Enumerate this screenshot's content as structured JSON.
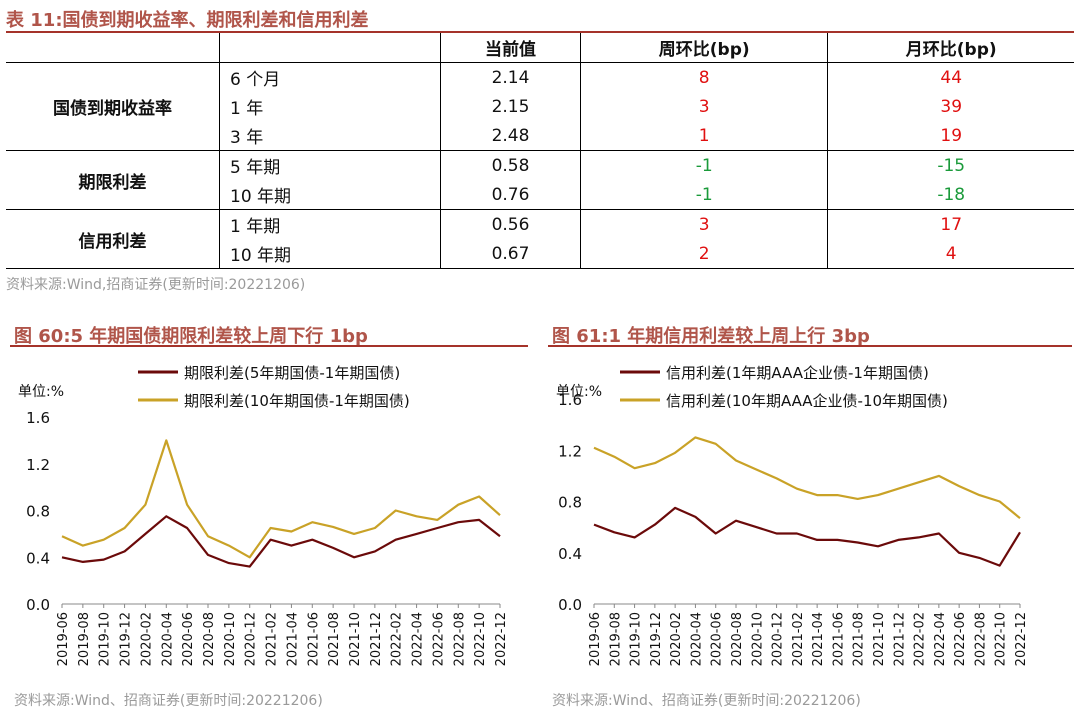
{
  "table": {
    "caption": "表 11:国债到期收益率、期限利差和信用利差",
    "headers": [
      "当前值",
      "周环比(bp)",
      "月环比(bp)"
    ],
    "groups": [
      {
        "name": "国债到期收益率",
        "rows": [
          {
            "label": "6 个月",
            "value": "2.14",
            "wow": "8",
            "mom": "44"
          },
          {
            "label": "1 年",
            "value": "2.15",
            "wow": "3",
            "mom": "39"
          },
          {
            "label": "3 年",
            "value": "2.48",
            "wow": "1",
            "mom": "19"
          }
        ]
      },
      {
        "name": "期限利差",
        "rows": [
          {
            "label": "5 年期",
            "value": "0.58",
            "wow": "-1",
            "mom": "-15"
          },
          {
            "label": "10 年期",
            "value": "0.76",
            "wow": "-1",
            "mom": "-18"
          }
        ]
      },
      {
        "name": "信用利差",
        "rows": [
          {
            "label": "1 年期",
            "value": "0.56",
            "wow": "3",
            "mom": "17"
          },
          {
            "label": "10 年期",
            "value": "0.67",
            "wow": "2",
            "mom": "4"
          }
        ]
      }
    ],
    "source": "资料来源:Wind,招商证券(更新时间:20221206)"
  },
  "colors": {
    "up": "#e01010",
    "down": "#1a9a3a",
    "series_dark": "#6b0a0a",
    "series_gold": "#c9a227",
    "caption": "#b0554a"
  },
  "chart_data": [
    {
      "type": "line",
      "caption": "图 60:5 年期国债期限利差较上周下行 1bp",
      "unit_label": "单位:%",
      "ylim": [
        0,
        1.6
      ],
      "yticks": [
        "1.6",
        "1.2",
        "0.8",
        "0.4",
        "0.0"
      ],
      "x": [
        "2019-06",
        "2019-08",
        "2019-10",
        "2019-12",
        "2020-02",
        "2020-04",
        "2020-06",
        "2020-08",
        "2020-10",
        "2020-12",
        "2021-02",
        "2021-04",
        "2021-06",
        "2021-08",
        "2021-10",
        "2021-12",
        "2022-02",
        "2022-04",
        "2022-06",
        "2022-08",
        "2022-10",
        "2022-12"
      ],
      "series": [
        {
          "name": "期限利差(5年期国债-1年期国债)",
          "color": "#6b0a0a",
          "values": [
            0.4,
            0.36,
            0.38,
            0.45,
            0.6,
            0.75,
            0.65,
            0.42,
            0.35,
            0.32,
            0.55,
            0.5,
            0.55,
            0.48,
            0.4,
            0.45,
            0.55,
            0.6,
            0.65,
            0.7,
            0.72,
            0.58
          ]
        },
        {
          "name": "期限利差(10年期国债-1年期国债)",
          "color": "#c9a227",
          "values": [
            0.58,
            0.5,
            0.55,
            0.65,
            0.85,
            1.4,
            0.85,
            0.58,
            0.5,
            0.4,
            0.65,
            0.62,
            0.7,
            0.66,
            0.6,
            0.65,
            0.8,
            0.75,
            0.72,
            0.85,
            0.92,
            0.76
          ]
        }
      ],
      "source": "资料来源:Wind、招商证券(更新时间:20221206)"
    },
    {
      "type": "line",
      "caption": "图 61:1 年期信用利差较上周上行 3bp",
      "unit_label": "单位:%",
      "ylim": [
        0,
        1.6
      ],
      "yticks": [
        "1.6",
        "1.2",
        "0.8",
        "0.4",
        "0.0"
      ],
      "x": [
        "2019-06",
        "2019-08",
        "2019-10",
        "2019-12",
        "2020-02",
        "2020-04",
        "2020-06",
        "2020-08",
        "2020-10",
        "2020-12",
        "2021-02",
        "2021-04",
        "2021-06",
        "2021-08",
        "2021-10",
        "2021-12",
        "2022-02",
        "2022-04",
        "2022-06",
        "2022-08",
        "2022-10",
        "2022-12"
      ],
      "series": [
        {
          "name": "信用利差(1年期AAA企业债-1年期国债)",
          "color": "#6b0a0a",
          "values": [
            0.62,
            0.56,
            0.52,
            0.62,
            0.75,
            0.68,
            0.55,
            0.65,
            0.6,
            0.55,
            0.55,
            0.5,
            0.5,
            0.48,
            0.45,
            0.5,
            0.52,
            0.55,
            0.4,
            0.36,
            0.3,
            0.56
          ]
        },
        {
          "name": "信用利差(10年期AAA企业债-10年期国债)",
          "color": "#c9a227",
          "values": [
            1.22,
            1.15,
            1.06,
            1.1,
            1.18,
            1.3,
            1.25,
            1.12,
            1.05,
            0.98,
            0.9,
            0.85,
            0.85,
            0.82,
            0.85,
            0.9,
            0.95,
            1.0,
            0.92,
            0.85,
            0.8,
            0.67
          ]
        }
      ],
      "source": "资料来源:Wind、招商证券(更新时间:20221206)"
    }
  ]
}
